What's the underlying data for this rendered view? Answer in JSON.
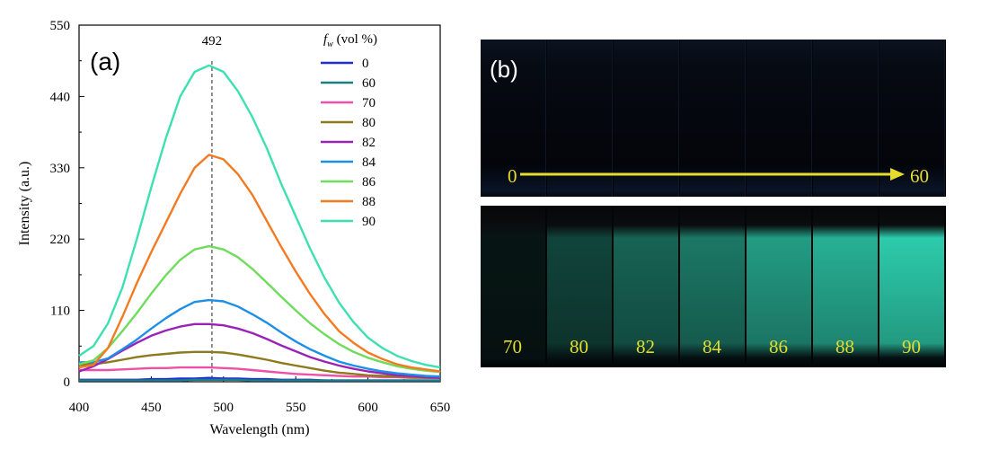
{
  "panel_a": {
    "letter": "(a)",
    "chart_data": {
      "type": "line",
      "title": "",
      "xlabel": "Wavelength (nm)",
      "ylabel": "Intensity (a.u.)",
      "xlim": [
        400,
        650
      ],
      "ylim": [
        0,
        550
      ],
      "xticks": [
        400,
        450,
        500,
        550,
        600,
        650
      ],
      "yticks": [
        0,
        110,
        220,
        330,
        440,
        550
      ],
      "grid": false,
      "legend_position": "top-right",
      "legend_title_symbol": "f",
      "legend_title_subscript": "w",
      "legend_title_rest": " (vol %)",
      "peak_marker": {
        "x": 492,
        "label": "492",
        "style": "dashed"
      },
      "x": [
        400,
        410,
        420,
        430,
        440,
        450,
        460,
        470,
        480,
        490,
        500,
        510,
        520,
        530,
        540,
        550,
        560,
        570,
        580,
        590,
        600,
        610,
        620,
        630,
        640,
        650
      ],
      "series": [
        {
          "name": "0",
          "color": "#1f2bdc",
          "values": [
            3,
            3,
            3,
            3,
            3,
            4,
            4,
            5,
            5,
            6,
            5,
            5,
            4,
            4,
            3,
            3,
            3,
            2,
            2,
            2,
            2,
            2,
            2,
            2,
            2,
            2
          ]
        },
        {
          "name": "60",
          "color": "#1c7f86",
          "values": [
            2,
            2,
            2,
            2,
            2,
            2,
            2,
            2,
            3,
            3,
            3,
            3,
            2,
            2,
            2,
            2,
            2,
            2,
            2,
            2,
            2,
            2,
            2,
            2,
            2,
            2
          ]
        },
        {
          "name": "70",
          "color": "#f04fa8",
          "values": [
            18,
            18,
            18,
            19,
            20,
            21,
            21,
            22,
            22,
            22,
            21,
            20,
            18,
            16,
            14,
            12,
            11,
            10,
            9,
            8,
            8,
            7,
            7,
            6,
            6,
            6
          ]
        },
        {
          "name": "80",
          "color": "#8c7a1c",
          "values": [
            26,
            27,
            30,
            34,
            38,
            41,
            43,
            45,
            46,
            46,
            45,
            42,
            38,
            34,
            29,
            25,
            21,
            17,
            14,
            12,
            10,
            9,
            8,
            7,
            6,
            6
          ]
        },
        {
          "name": "82",
          "color": "#9a22b8",
          "values": [
            16,
            24,
            35,
            48,
            60,
            71,
            79,
            85,
            89,
            89,
            87,
            82,
            75,
            66,
            56,
            47,
            38,
            31,
            25,
            20,
            16,
            13,
            10,
            9,
            7,
            6
          ]
        },
        {
          "name": "84",
          "color": "#1e8fe6",
          "values": [
            30,
            30,
            36,
            50,
            65,
            82,
            98,
            112,
            123,
            126,
            124,
            116,
            104,
            91,
            76,
            62,
            50,
            40,
            31,
            25,
            20,
            16,
            13,
            11,
            9,
            8
          ]
        },
        {
          "name": "86",
          "color": "#6edc5c",
          "values": [
            27,
            33,
            52,
            78,
            106,
            136,
            164,
            188,
            204,
            209,
            204,
            192,
            174,
            153,
            131,
            110,
            90,
            73,
            58,
            46,
            37,
            30,
            24,
            20,
            17,
            15
          ]
        },
        {
          "name": "88",
          "color": "#f47a22",
          "values": [
            22,
            26,
            52,
            100,
            152,
            200,
            245,
            290,
            330,
            350,
            343,
            320,
            288,
            248,
            208,
            170,
            135,
            104,
            78,
            60,
            45,
            35,
            27,
            22,
            19,
            16
          ]
        },
        {
          "name": "90",
          "color": "#3ee0b2",
          "values": [
            40,
            55,
            90,
            145,
            220,
            300,
            375,
            440,
            478,
            488,
            478,
            448,
            408,
            360,
            305,
            255,
            205,
            160,
            122,
            92,
            68,
            52,
            40,
            32,
            26,
            22
          ]
        }
      ]
    }
  },
  "panel_b": {
    "letter": "(b)",
    "top_row": {
      "start_label": "0",
      "end_label": "60",
      "vial_count": 7
    },
    "bottom_row": {
      "labels": [
        "70",
        "80",
        "82",
        "84",
        "86",
        "88",
        "90"
      ],
      "brightness": [
        0.08,
        0.3,
        0.45,
        0.55,
        0.72,
        0.82,
        0.95
      ]
    },
    "label_color": "#e6dc2e",
    "glow_color": "#2fd6b4"
  }
}
